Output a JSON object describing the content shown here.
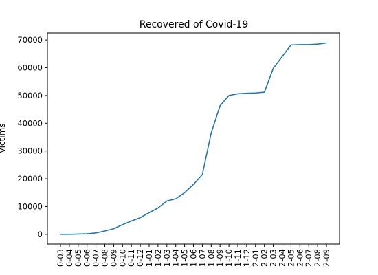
{
  "chart_data": {
    "type": "line",
    "title": "Recovered of Covid-19",
    "xlabel": "",
    "ylabel": "victims",
    "ylim": [
      -3500,
      72500
    ],
    "yticks": [
      0,
      10000,
      20000,
      30000,
      40000,
      50000,
      60000,
      70000
    ],
    "grid": false,
    "categories": [
      "0-03",
      "0-04",
      "0-05",
      "0-06",
      "0-07",
      "0-08",
      "0-09",
      "0-10",
      "0-11",
      "0-12",
      "1-01",
      "1-02",
      "1-03",
      "1-04",
      "1-05",
      "1-06",
      "1-07",
      "1-08",
      "1-09",
      "1-10",
      "1-11",
      "1-12",
      "2-01",
      "2-02",
      "2-03",
      "2-04",
      "2-05",
      "2-06",
      "2-07",
      "2-08",
      "2-09"
    ],
    "series": [
      {
        "color": "#1f77b4",
        "values": [
          0,
          0,
          100,
          200,
          500,
          1200,
          2000,
          3500,
          4800,
          6000,
          7800,
          9500,
          12000,
          12800,
          15000,
          18000,
          21500,
          36500,
          46300,
          50000,
          50600,
          50800,
          50900,
          51200,
          59800,
          64000,
          68200,
          68300,
          68300,
          68500,
          68900
        ]
      }
    ]
  }
}
